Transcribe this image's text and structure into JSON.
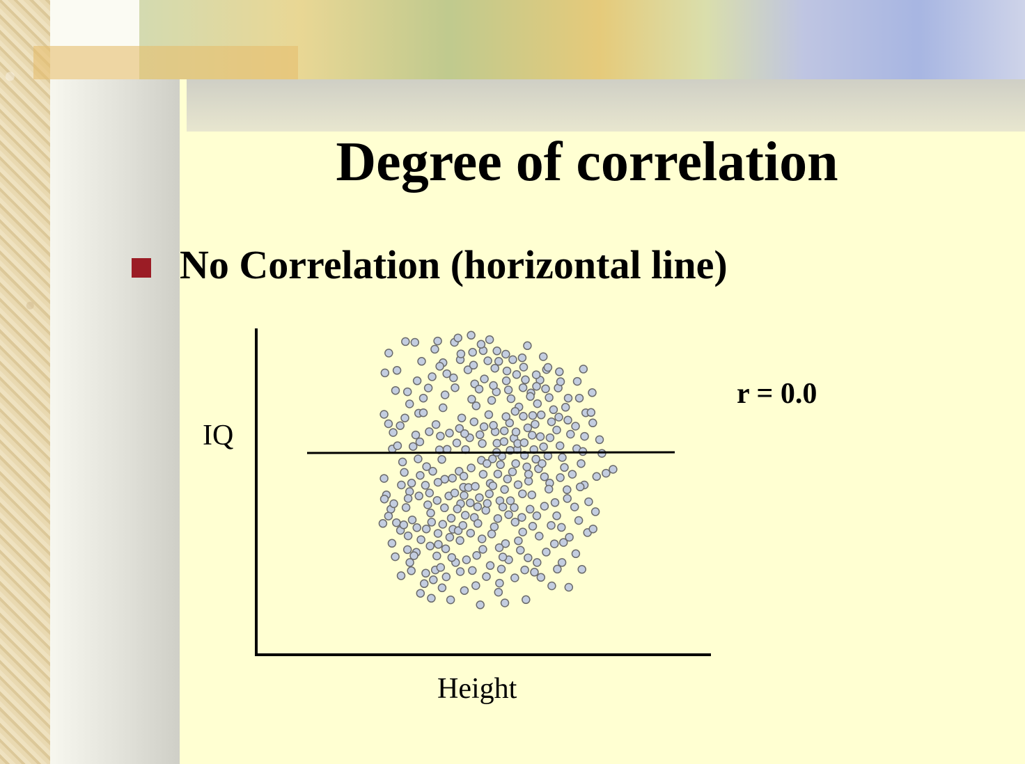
{
  "slide": {
    "title": "Degree of correlation",
    "bullet": "No Correlation (horizontal line)"
  },
  "colors": {
    "background": "#ffffd2",
    "bullet": "#9b1c25",
    "point_fill": "#c3cde0",
    "point_stroke": "#6b6b6b"
  },
  "chart_data": {
    "type": "scatter",
    "xlabel": "Height",
    "ylabel": "IQ",
    "annotation": "r = 0.0",
    "xlim": [
      0,
      100
    ],
    "ylim": [
      0,
      100
    ],
    "grid": false,
    "points": [
      [
        20.5,
        92.8
      ],
      [
        26.2,
        97.0
      ],
      [
        29.4,
        96.7
      ],
      [
        36.2,
        94.2
      ],
      [
        42.9,
        96.7
      ],
      [
        49.1,
        93.1
      ],
      [
        54.3,
        90.0
      ],
      [
        58.0,
        89.8
      ],
      [
        39.0,
        89.3
      ],
      [
        31.7,
        89.8
      ],
      [
        23.3,
        86.5
      ],
      [
        19.2,
        85.6
      ],
      [
        30.2,
        82.7
      ],
      [
        22.8,
        79.2
      ],
      [
        43.1,
        80.2
      ],
      [
        49.8,
        81.6
      ],
      [
        50.3,
        73.6
      ],
      [
        39.0,
        72.9
      ],
      [
        30.7,
        70.9
      ],
      [
        18.9,
        70.5
      ],
      [
        24.4,
        66.4
      ],
      [
        34.3,
        64.2
      ],
      [
        41.2,
        63.7
      ],
      [
        48.1,
        62.0
      ],
      [
        56.8,
        64.2
      ],
      [
        61.7,
        67.4
      ],
      [
        64.9,
        73.2
      ],
      [
        69.0,
        78.3
      ],
      [
        72.1,
        83.0
      ],
      [
        74.3,
        86.8
      ],
      [
        66.5,
        87.7
      ],
      [
        60.6,
        82.7
      ],
      [
        55.6,
        75.6
      ],
      [
        45.4,
        69.2
      ],
      [
        37.8,
        57.6
      ],
      [
        28.8,
        58.8
      ],
      [
        21.7,
        57.9
      ],
      [
        25.8,
        49.4
      ],
      [
        33.4,
        51.5
      ],
      [
        39.6,
        46.9
      ],
      [
        46.0,
        44.0
      ],
      [
        52.7,
        48.7
      ],
      [
        59.1,
        55.3
      ],
      [
        66.8,
        55.6
      ],
      [
        73.3,
        58.7
      ],
      [
        77.8,
        64.8
      ],
      [
        78.9,
        59.1
      ],
      [
        71.6,
        50.7
      ],
      [
        64.6,
        44.9
      ],
      [
        58.4,
        39.1
      ],
      [
        49.7,
        33.0
      ],
      [
        41.8,
        32.7
      ],
      [
        34.8,
        34.6
      ],
      [
        28.5,
        32.1
      ],
      [
        21.2,
        36.0
      ],
      [
        19.7,
        41.2
      ],
      [
        27.6,
        42.4
      ],
      [
        34.4,
        41.9
      ],
      [
        45.0,
        38.0
      ],
      [
        51.4,
        40.2
      ],
      [
        55.1,
        45.4
      ],
      [
        63.3,
        36.6
      ],
      [
        69.3,
        41.2
      ],
      [
        75.4,
        45.5
      ],
      [
        80.4,
        51.2
      ],
      [
        84.6,
        58.0
      ],
      [
        86.1,
        52.6
      ],
      [
        81.3,
        43.1
      ],
      [
        77.2,
        38.4
      ],
      [
        71.0,
        33.6
      ],
      [
        66.2,
        27.7
      ],
      [
        60.3,
        23.5
      ],
      [
        52.6,
        21.4
      ],
      [
        44.8,
        24.6
      ],
      [
        37.3,
        27.2
      ],
      [
        31.5,
        24.9
      ],
      [
        24.5,
        28.3
      ],
      [
        18.5,
        30.8
      ],
      [
        21.6,
        23.6
      ],
      [
        29.9,
        20.3
      ],
      [
        36.9,
        19.0
      ],
      [
        43.3,
        16.6
      ],
      [
        49.0,
        13.7
      ],
      [
        55.1,
        15.5
      ],
      [
        61.4,
        17.6
      ],
      [
        68.0,
        18.3
      ],
      [
        74.2,
        20.4
      ],
      [
        80.1,
        23.9
      ],
      [
        85.3,
        31.9
      ],
      [
        83.9,
        36.8
      ],
      [
        87.2,
        44.8
      ],
      [
        91.4,
        47.9
      ],
      [
        88.7,
        38.7
      ],
      [
        79.4,
        29.4
      ],
      [
        71.8,
        26.2
      ],
      [
        63.6,
        31.3
      ],
      [
        56.5,
        29.6
      ],
      [
        48.4,
        27.3
      ],
      [
        39.9,
        21.6
      ],
      [
        33.1,
        12.7
      ],
      [
        27.7,
        16.6
      ],
      [
        24.7,
        11.8
      ],
      [
        40.1,
        11.4
      ],
      [
        50.2,
        8.2
      ],
      [
        57.9,
        5.8
      ],
      [
        63.5,
        11.0
      ],
      [
        70.2,
        13.1
      ],
      [
        76.1,
        8.1
      ],
      [
        81.9,
        7.6
      ],
      [
        86.4,
        14.1
      ],
      [
        78.0,
        14.2
      ],
      [
        67.3,
        3.1
      ],
      [
        58.3,
        9.1
      ],
      [
        46.3,
        6.4
      ],
      [
        38.7,
        7.4
      ],
      [
        31.3,
        5.4
      ],
      [
        35.0,
        3.6
      ],
      [
        41.6,
        3.0
      ],
      [
        51.7,
        1.2
      ],
      [
        60.1,
        1.9
      ],
      [
        44.9,
        13.3
      ],
      [
        36.4,
        13.9
      ],
      [
        26.9,
        21.3
      ],
      [
        22.7,
        18.7
      ],
      [
        33.3,
        28.8
      ],
      [
        42.4,
        28.7
      ],
      [
        53.6,
        35.6
      ],
      [
        61.4,
        34.0
      ],
      [
        68.7,
        36.0
      ],
      [
        75.9,
        30.1
      ],
      [
        82.1,
        25.8
      ],
      [
        88.3,
        27.5
      ],
      [
        72.5,
        70.3
      ],
      [
        60.5,
        69.7
      ],
      [
        53.0,
        66.0
      ],
      [
        46.7,
        57.7
      ],
      [
        38.6,
        54.1
      ],
      [
        31.2,
        48.3
      ],
      [
        25.2,
        53.2
      ],
      [
        18.9,
        47.2
      ],
      [
        22.0,
        63.9
      ],
      [
        29.7,
        63.0
      ],
      [
        40.4,
        57.8
      ],
      [
        44.5,
        49.8
      ],
      [
        52.1,
        53.8
      ],
      [
        57.4,
        60.0
      ],
      [
        63.2,
        61.8
      ],
      [
        67.9,
        65.6
      ],
      [
        76.7,
        72.2
      ],
      [
        80.8,
        73.1
      ],
      [
        84.2,
        66.2
      ],
      [
        87.3,
        62.5
      ],
      [
        79.7,
        54.8
      ],
      [
        70.7,
        54.2
      ],
      [
        62.7,
        49.6
      ],
      [
        56.0,
        44.5
      ],
      [
        47.7,
        43.9
      ],
      [
        41.0,
        40.8
      ],
      [
        33.8,
        37.6
      ],
      [
        26.4,
        36.6
      ],
      [
        20.4,
        33.5
      ],
      [
        40.3,
        85.3
      ],
      [
        47.5,
        86.7
      ],
      [
        53.1,
        83.4
      ],
      [
        57.2,
        78.7
      ],
      [
        62.2,
        76.2
      ],
      [
        66.3,
        80.2
      ],
      [
        70.8,
        84.9
      ],
      [
        78.3,
        80.1
      ],
      [
        81.7,
        76.4
      ],
      [
        76.0,
        67.8
      ],
      [
        69.4,
        62.9
      ],
      [
        64.3,
        57.7
      ],
      [
        58.6,
        52.2
      ],
      [
        52.4,
        59.9
      ],
      [
        44.6,
        65.4
      ],
      [
        36.6,
        66.8
      ],
      [
        32.3,
        76.4
      ],
      [
        27.6,
        74.3
      ],
      [
        35.3,
        84.2
      ],
      [
        44.9,
        90.4
      ],
      [
        52.7,
        93.7
      ],
      [
        60.4,
        92.4
      ],
      [
        67.8,
        95.5
      ],
      [
        73.2,
        91.5
      ],
      [
        78.7,
        86.0
      ],
      [
        84.8,
        82.5
      ],
      [
        87.7,
        71.1
      ],
      [
        90.1,
        67.4
      ],
      [
        92.4,
        61.3
      ],
      [
        83.1,
        48.7
      ],
      [
        75.1,
        43.3
      ],
      [
        68.2,
        46.2
      ],
      [
        60.0,
        43.2
      ],
      [
        54.1,
        38.1
      ],
      [
        46.6,
        33.8
      ],
      [
        39.5,
        36.5
      ],
      [
        30.8,
        40.8
      ],
      [
        24.8,
        44.8
      ],
      [
        23.1,
        31.1
      ],
      [
        27.1,
        26.3
      ],
      [
        35.1,
        31.3
      ],
      [
        43.9,
        36.1
      ],
      [
        50.0,
        44.3
      ],
      [
        57.7,
        48.8
      ],
      [
        63.8,
        52.6
      ],
      [
        70.0,
        57.7
      ],
      [
        75.5,
        62.0
      ],
      [
        82.5,
        63.3
      ],
      [
        86.7,
        57.0
      ],
      [
        73.6,
        47.8
      ],
      [
        66.1,
        41.6
      ],
      [
        59.4,
        36.8
      ],
      [
        50.9,
        30.8
      ],
      [
        44.2,
        28.2
      ],
      [
        37.4,
        23.2
      ],
      [
        29.1,
        19.1
      ],
      [
        32.6,
        8.9
      ],
      [
        42.0,
        18.4
      ],
      [
        50.5,
        19.2
      ],
      [
        58.9,
        14.2
      ],
      [
        65.4,
        21.1
      ],
      [
        71.1,
        16.6
      ],
      [
        77.0,
        23.4
      ],
      [
        84.3,
        19.8
      ],
      [
        90.2,
        28.8
      ],
      [
        91.0,
        35.1
      ],
      [
        55.6,
        27.0
      ],
      [
        47.0,
        17.6
      ],
      [
        38.2,
        14.8
      ],
      [
        46.1,
        48.0
      ],
      [
        37.3,
        45.8
      ],
      [
        30.5,
        54.3
      ],
      [
        23.5,
        59.1
      ],
      [
        20.4,
        67.1
      ],
      [
        26.9,
        78.7
      ],
      [
        34.0,
        80.1
      ],
      [
        37.9,
        88.0
      ],
      [
        42.6,
        83.8
      ],
      [
        48.8,
        76.0
      ],
      [
        54.6,
        70.4
      ],
      [
        59.9,
        64.5
      ],
      [
        66.4,
        69.8
      ],
      [
        71.2,
        74.4
      ],
      [
        75.2,
        76.6
      ],
      [
        79.1,
        82.4
      ],
      [
        74.8,
        87.6
      ],
      [
        66.0,
        91.1
      ],
      [
        60.8,
        86.3
      ],
      [
        49.4,
        88.4
      ],
      [
        45.1,
        92.5
      ],
      [
        39.7,
        77.6
      ],
      [
        32.3,
        71.1
      ],
      [
        26.0,
        69.2
      ],
      [
        43.7,
        60.1
      ],
      [
        51.6,
        63.1
      ],
      [
        57.3,
        56.7
      ],
      [
        63.9,
        64.1
      ],
      [
        70.4,
        66.9
      ],
      [
        78.5,
        69.5
      ],
      [
        85.5,
        76.4
      ],
      [
        89.9,
        78.4
      ],
      [
        94.6,
        49.1
      ],
      [
        97.0,
        50.5
      ],
      [
        93.2,
        56.3
      ],
      [
        89.5,
        71.2
      ],
      [
        81.6,
        68.4
      ],
      [
        86.9,
        87.0
      ],
      [
        54.9,
        97.7
      ],
      [
        48.6,
        99.3
      ],
      [
        44.1,
        98.3
      ],
      [
        52.0,
        96.0
      ],
      [
        56.7,
        87.3
      ],
      [
        51.3,
        79.7
      ],
      [
        56.2,
        81.0
      ],
      [
        61.3,
        79.4
      ],
      [
        63.6,
        71.6
      ],
      [
        64.1,
        85.0
      ],
      [
        68.8,
        77.0
      ],
      [
        70.9,
        80.7
      ],
      [
        69.6,
        70.1
      ],
      [
        64.5,
        59.9
      ],
      [
        55.9,
        54.3
      ],
      [
        48.6,
        51.0
      ],
      [
        42.2,
        47.3
      ],
      [
        35.5,
        49.8
      ],
      [
        28.3,
        45.5
      ],
      [
        31.1,
        60.5
      ],
      [
        38.1,
        62.6
      ],
      [
        46.4,
        63.5
      ],
      [
        49.6,
        67.8
      ],
      [
        56.2,
        66.5
      ],
      [
        61.9,
        57.4
      ],
      [
        67.6,
        51.4
      ],
      [
        72.8,
        52.6
      ],
      [
        68.2,
        48.7
      ],
      [
        61.0,
        47.0
      ],
      [
        54.8,
        41.6
      ],
      [
        48.3,
        38.3
      ],
      [
        43.0,
        41.9
      ],
      [
        37.0,
        39.2
      ],
      [
        33.0,
        44.7
      ],
      [
        27.1,
        39.9
      ],
      [
        22.2,
        38.0
      ],
      [
        19.0,
        39.7
      ],
      [
        30.1,
        29.3
      ],
      [
        38.9,
        30.5
      ],
      [
        45.8,
        30.1
      ],
      [
        52.3,
        25.2
      ],
      [
        58.2,
        22.0
      ],
      [
        64.7,
        24.5
      ],
      [
        69.6,
        29.8
      ],
      [
        73.6,
        37.1
      ],
      [
        77.8,
        33.6
      ],
      [
        81.4,
        39.9
      ],
      [
        85.8,
        44.1
      ],
      [
        65.9,
        33.0
      ],
      [
        62.0,
        39.1
      ],
      [
        57.7,
        32.6
      ],
      [
        50.8,
        36.9
      ],
      [
        46.2,
        41.0
      ],
      [
        41.3,
        25.8
      ],
      [
        34.6,
        22.6
      ],
      [
        25.6,
        30.3
      ],
      [
        28.2,
        13.6
      ],
      [
        35.7,
        10.3
      ],
      [
        53.8,
        11.5
      ],
      [
        59.4,
        18.6
      ],
      [
        66.9,
        13.9
      ],
      [
        72.4,
        11.2
      ],
      [
        79.6,
        16.6
      ],
      [
        54.0,
        52.6
      ],
      [
        59.8,
        60.6
      ],
      [
        66.7,
        60.2
      ],
      [
        72.2,
        62.4
      ],
      [
        74.8,
        55.4
      ],
      [
        79.0,
        47.5
      ],
      [
        74.0,
        79.8
      ],
      [
        67.1,
        83.1
      ],
      [
        62.8,
        90.4
      ],
      [
        57.4,
        93.6
      ],
      [
        37.2,
        97.2
      ]
    ]
  }
}
